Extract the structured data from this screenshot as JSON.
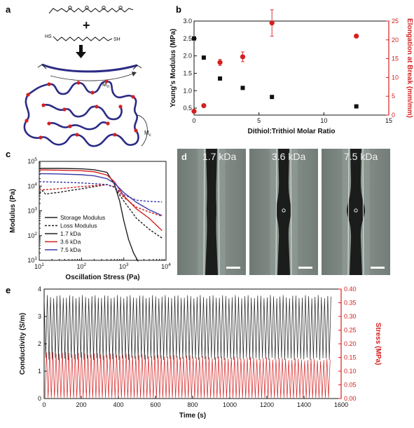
{
  "panels": {
    "a": "a",
    "b": "b",
    "c": "c",
    "d": "d",
    "e": "e"
  },
  "schematic": {
    "mn_label": "M",
    "mn_sub": "n",
    "mc_label": "M",
    "mc_sub": "c",
    "sh1": "HS",
    "sh2": "SH",
    "plus": "+"
  },
  "colors": {
    "red": "#d42020",
    "black": "#111111",
    "blue": "#3b3ba8",
    "polymer": "#2b2b86"
  },
  "micrographs": {
    "labels": [
      "1.7 kDa",
      "3.6 kDa",
      "7.5 kDa"
    ]
  },
  "chart_data": [
    {
      "id": "b",
      "type": "scatter",
      "xlabel": "Dithiol:Trithiol Molar Ratio",
      "ylabel": "Young's Modulus (MPa)",
      "y2label": "Elongation at Break (mm/mm)",
      "xlim": [
        0,
        15
      ],
      "ylim": [
        0.3,
        3.0
      ],
      "y2lim": [
        0,
        25
      ],
      "xticks": [
        0,
        5,
        10,
        15
      ],
      "yticks": [
        0.5,
        1.0,
        1.5,
        2.0,
        2.5,
        3.0
      ],
      "y2ticks": [
        0,
        5,
        10,
        15,
        20,
        25
      ],
      "xtick_labels": [
        "0",
        "5",
        "10",
        "15"
      ],
      "ytick_labels": [
        "0.5",
        "1.0",
        "1.5",
        "2.0",
        "2.5",
        "3.0"
      ],
      "y2tick_labels": [
        "0",
        "5",
        "10",
        "15",
        "20",
        "25"
      ],
      "series": [
        {
          "axis": "left",
          "marker": "square",
          "color": "#111111",
          "x": [
            0,
            0.75,
            2,
            3.75,
            6,
            12.5
          ],
          "y": [
            2.5,
            1.95,
            1.35,
            1.08,
            0.82,
            0.55
          ]
        },
        {
          "axis": "right",
          "marker": "circle",
          "color": "#d42020",
          "x": [
            0,
            0.75,
            2,
            3.75,
            6,
            12.5
          ],
          "y": [
            1,
            2.5,
            14,
            15.5,
            24.5,
            21
          ],
          "err": [
            0,
            0,
            0.8,
            1.3,
            3.5,
            0
          ]
        }
      ]
    },
    {
      "id": "c",
      "type": "line",
      "xscale": "log",
      "yscale": "log",
      "xlabel": "Oscillation Stress (Pa)",
      "ylabel": "Modulus (Pa)",
      "xlim": [
        10,
        10000
      ],
      "ylim": [
        10,
        100000
      ],
      "xtick_labels": [
        {
          "b": "10",
          "e": "1"
        },
        {
          "b": "10",
          "e": "2"
        },
        {
          "b": "10",
          "e": "3"
        },
        {
          "b": "10",
          "e": "4"
        }
      ],
      "ytick_labels": [
        {
          "b": "10",
          "e": "1"
        },
        {
          "b": "10",
          "e": "2"
        },
        {
          "b": "10",
          "e": "3"
        },
        {
          "b": "10",
          "e": "4"
        },
        {
          "b": "10",
          "e": "5"
        }
      ],
      "legend": [
        "Storage Modulus",
        "Loss Modulus",
        "1.7 kDa",
        "3.6 kDa",
        "7.5 kDa"
      ],
      "series": [
        {
          "group": "1.7 kDa",
          "kind": "storage",
          "color": "#222222",
          "x": [
            10,
            30,
            100,
            200,
            400,
            600,
            800,
            1000,
            1300,
            1700,
            2200
          ],
          "y": [
            52000,
            52000,
            50000,
            46000,
            36000,
            12000,
            2500,
            400,
            70,
            20,
            9
          ]
        },
        {
          "group": "3.6 kDa",
          "kind": "storage",
          "color": "#d42020",
          "x": [
            10,
            30,
            100,
            200,
            400,
            600,
            1000,
            2000,
            4000,
            8000
          ],
          "y": [
            45000,
            44000,
            42000,
            38000,
            28000,
            15000,
            4000,
            1200,
            500,
            160
          ]
        },
        {
          "group": "7.5 kDa",
          "kind": "storage",
          "color": "#3b3ba8",
          "x": [
            10,
            30,
            100,
            200,
            400,
            600,
            1000,
            2000,
            4000,
            8000
          ],
          "y": [
            32000,
            31000,
            29000,
            26000,
            20000,
            13000,
            5500,
            2200,
            1100,
            650
          ]
        },
        {
          "group": "1.7 kDa",
          "kind": "loss",
          "color": "#222222",
          "x": [
            10,
            12,
            14,
            20,
            30,
            50,
            100,
            200,
            400,
            600,
            1000,
            2000,
            4000,
            8000
          ],
          "y": [
            5000,
            6500,
            4800,
            5200,
            5600,
            6500,
            7800,
            9500,
            11500,
            9000,
            2500,
            500,
            180,
            80
          ]
        },
        {
          "group": "3.6 kDa",
          "kind": "loss",
          "color": "#d42020",
          "x": [
            10,
            20,
            50,
            100,
            200,
            400,
            600,
            1000,
            2000,
            4000,
            8000
          ],
          "y": [
            7000,
            7500,
            8500,
            9500,
            10500,
            11500,
            9500,
            3500,
            1400,
            900,
            600
          ]
        },
        {
          "group": "7.5 kDa",
          "kind": "loss",
          "color": "#3b3ba8",
          "x": [
            10,
            30,
            100,
            200,
            400,
            600,
            1000,
            2000,
            4000,
            8000
          ],
          "y": [
            15000,
            14500,
            13500,
            12500,
            11500,
            9000,
            4500,
            2700,
            2400,
            2300
          ]
        }
      ]
    },
    {
      "id": "e",
      "type": "line",
      "xlabel": "Time (s)",
      "ylabel": "Conductivity (S/m)",
      "y2label": "Stress (MPa)",
      "xlim": [
        0,
        1600
      ],
      "ylim": [
        0,
        4
      ],
      "y2lim": [
        0,
        0.4
      ],
      "xtick_labels": [
        "0",
        "200",
        "400",
        "600",
        "800",
        "1000",
        "1200",
        "1400",
        "1600"
      ],
      "ytick_labels": [
        "0",
        "1",
        "2",
        "3",
        "4"
      ],
      "y2tick_labels": [
        "0.00",
        "0.05",
        "0.10",
        "0.15",
        "0.20",
        "0.25",
        "0.30",
        "0.35",
        "0.40"
      ],
      "series": [
        {
          "name": "",
          "axis": "left",
          "color": "#222222",
          "cycles": 90,
          "t_end": 1545,
          "min": 1.45,
          "max": 3.72
        },
        {
          "name": "",
          "axis": "right",
          "color": "#d42020",
          "cycles": 90,
          "t_end": 1545,
          "min": 0.003,
          "max_start": 0.168,
          "max_end": 0.14
        }
      ]
    }
  ]
}
